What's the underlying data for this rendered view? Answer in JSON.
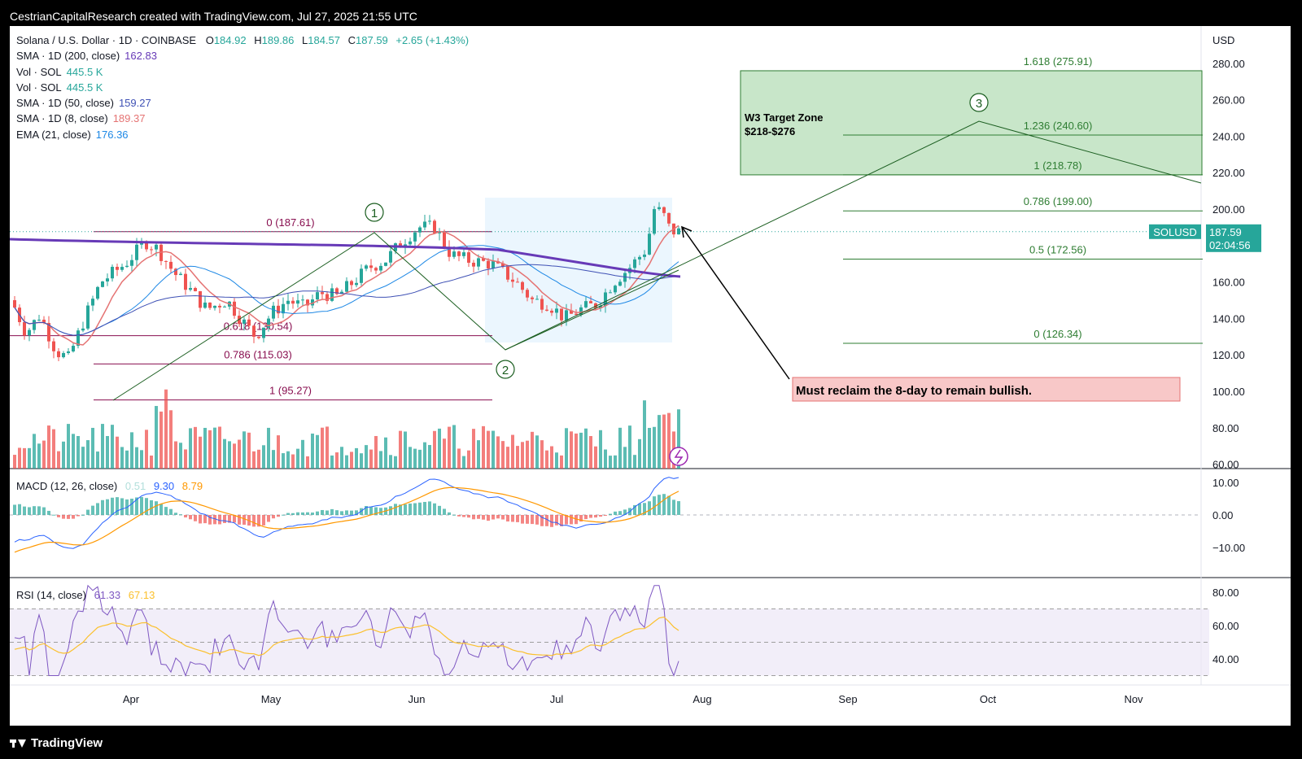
{
  "header": {
    "caption": "CestrianCapitalResearch created with TradingView.com, Jul 27, 2025 21:55 UTC"
  },
  "footer": {
    "brand": "TradingView"
  },
  "colors": {
    "up": "#26a69a",
    "down": "#ef5350",
    "sma200": "#673ab7",
    "sma50": "#3f51b5",
    "sma8": "#e57373",
    "ema21": "#1e88e5",
    "fib_line": "#2e7d32",
    "fib_left": "#880e4f",
    "target_fill": "#c8e6c9",
    "alert_fill": "#f8c8c8",
    "macd": "#2962ff",
    "signal": "#ff9800",
    "rsi": "#7e57c2",
    "rsi_ma": "#fbc02d"
  },
  "main_legend": {
    "symbol": "Solana / U.S. Dollar · 1D · COINBASE",
    "o_label": "O",
    "o": "184.92",
    "h_label": "H",
    "h": "189.86",
    "l_label": "L",
    "l": "184.57",
    "c_label": "C",
    "c": "187.59",
    "chg": "+2.65 (+1.43%)",
    "indicators": [
      {
        "label": "SMA · 1D (200, close)",
        "value": "162.83",
        "color": "#673ab7"
      },
      {
        "label": "Vol · SOL",
        "value": "445.5 K",
        "color": "#26a69a"
      },
      {
        "label": "Vol · SOL",
        "value": "445.5 K",
        "color": "#26a69a"
      },
      {
        "label": "SMA · 1D (50, close)",
        "value": "159.27",
        "color": "#3f51b5"
      },
      {
        "label": "SMA · 1D (8, close)",
        "value": "189.37",
        "color": "#e57373"
      },
      {
        "label": "EMA (21, close)",
        "value": "176.36",
        "color": "#1e88e5"
      }
    ]
  },
  "macd_legend": {
    "label": "MACD (12, 26, close)",
    "hist": "0.51",
    "macd": "9.30",
    "signal": "8.79"
  },
  "rsi_legend": {
    "label": "RSI (14, close)",
    "rsi": "61.33",
    "ma": "67.13"
  },
  "price_axis": {
    "currency": "USD",
    "ticks": [
      "280.00",
      "260.00",
      "240.00",
      "220.00",
      "200.00",
      "160.00",
      "140.00",
      "120.00",
      "100.00",
      "80.00",
      "60.00"
    ],
    "last_symbol": "SOLUSD",
    "last_price": "187.59",
    "countdown": "02:04:56"
  },
  "macd_axis": {
    "ticks": [
      "10.00",
      "0.00",
      "−10.00"
    ]
  },
  "rsi_axis": {
    "ticks": [
      "80.00",
      "60.00",
      "40.00"
    ]
  },
  "time_axis": {
    "labels": [
      "Apr",
      "May",
      "Jun",
      "Jul",
      "Aug",
      "Sep",
      "Oct",
      "Nov"
    ]
  },
  "annotations": {
    "target_zone_title": "W3 Target Zone",
    "target_zone_range": "$218-$276",
    "alert": "Must reclaim the 8-day to remain bullish.",
    "wave1": "1",
    "wave2": "2",
    "wave3": "3"
  },
  "chart_data": {
    "type": "candlestick",
    "symbol": "SOLUSD",
    "timeframe": "1D",
    "ylim": [
      60,
      290
    ],
    "last_close": 187.59,
    "fib_retracement_left": [
      {
        "label": "0 (187.61)",
        "level": 187.61
      },
      {
        "label": "0.618 (130.54)",
        "level": 130.54
      },
      {
        "label": "0.786 (115.03)",
        "level": 115.03
      },
      {
        "label": "1 (95.27)",
        "level": 95.27
      }
    ],
    "fib_extension_right": [
      {
        "label": "1.618 (275.91)",
        "level": 275.91
      },
      {
        "label": "1.236 (240.60)",
        "level": 240.6
      },
      {
        "label": "1 (218.78)",
        "level": 218.78
      },
      {
        "label": "0.786 (199.00)",
        "level": 199.0
      },
      {
        "label": "0.5 (172.56)",
        "level": 172.56
      },
      {
        "label": "0 (126.34)",
        "level": 126.34
      }
    ],
    "moving_averages": [
      {
        "name": "SMA 200",
        "last": 162.83
      },
      {
        "name": "SMA 50",
        "last": 159.27
      },
      {
        "name": "SMA 8",
        "last": 189.37
      },
      {
        "name": "EMA 21",
        "last": 176.36
      }
    ],
    "macd": {
      "histogram": 0.51,
      "macd": 9.3,
      "signal": 8.79,
      "ylim": [
        -15,
        14
      ]
    },
    "rsi": {
      "rsi": 61.33,
      "ma": 67.13,
      "upper": 70,
      "lower": 30,
      "mid": 50,
      "ylim": [
        25,
        90
      ]
    },
    "volume_last": "445.5 K"
  }
}
